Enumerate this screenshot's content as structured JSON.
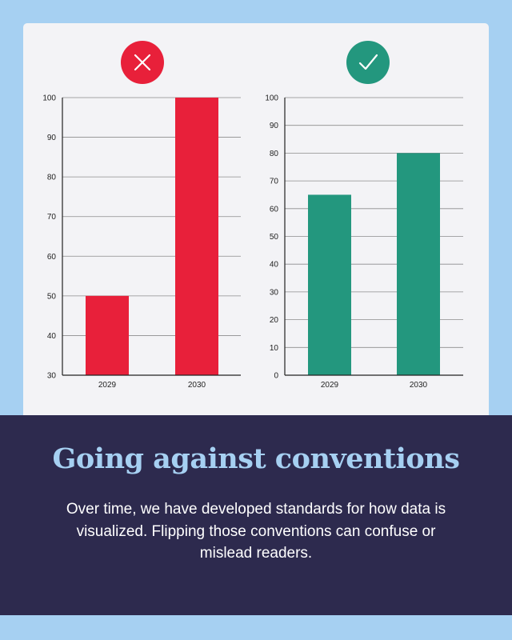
{
  "colors": {
    "bad": "#e8203a",
    "good": "#23977e",
    "background": "#a6d0f2",
    "panel": "#2d2a4e",
    "headline": "#a6d0f2"
  },
  "icons": {
    "bad": "close-icon",
    "good": "checkmark-icon"
  },
  "chart_data": [
    {
      "type": "bar",
      "categories": [
        "2029",
        "2030"
      ],
      "values": [
        50,
        100
      ],
      "ylim": [
        30,
        100
      ],
      "yticks": [
        30,
        40,
        50,
        60,
        70,
        80,
        90,
        100
      ],
      "grid": true,
      "title": "",
      "xlabel": "",
      "ylabel": ""
    },
    {
      "type": "bar",
      "categories": [
        "2029",
        "2030"
      ],
      "values": [
        65,
        80
      ],
      "ylim": [
        0,
        100
      ],
      "yticks": [
        0,
        10,
        20,
        30,
        40,
        50,
        60,
        70,
        80,
        90,
        100
      ],
      "grid": true,
      "title": "",
      "xlabel": "",
      "ylabel": ""
    }
  ],
  "footer": {
    "title": "Going against conventions",
    "text": "Over time, we have developed standards for how data is visualized. Flipping those conventions can confuse or mislead readers."
  }
}
